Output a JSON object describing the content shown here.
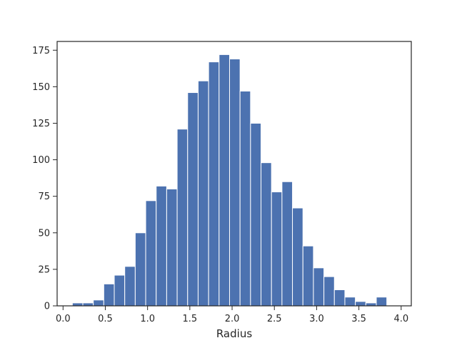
{
  "chart_data": {
    "type": "bar",
    "title": "",
    "xlabel": "Radius",
    "ylabel": "",
    "xlim": [
      -0.07,
      4.12
    ],
    "ylim": [
      0,
      181
    ],
    "grid": false,
    "bar_color": "#4c72b0",
    "bin_width": 0.124,
    "bins": [
      {
        "x0": 0.11,
        "count": 2
      },
      {
        "x0": 0.234,
        "count": 2
      },
      {
        "x0": 0.358,
        "count": 4
      },
      {
        "x0": 0.482,
        "count": 15
      },
      {
        "x0": 0.606,
        "count": 21
      },
      {
        "x0": 0.73,
        "count": 27
      },
      {
        "x0": 0.854,
        "count": 50
      },
      {
        "x0": 0.978,
        "count": 72
      },
      {
        "x0": 1.102,
        "count": 82
      },
      {
        "x0": 1.226,
        "count": 80
      },
      {
        "x0": 1.35,
        "count": 121
      },
      {
        "x0": 1.474,
        "count": 146
      },
      {
        "x0": 1.598,
        "count": 154
      },
      {
        "x0": 1.722,
        "count": 167
      },
      {
        "x0": 1.846,
        "count": 172
      },
      {
        "x0": 1.97,
        "count": 169
      },
      {
        "x0": 2.094,
        "count": 147
      },
      {
        "x0": 2.218,
        "count": 125
      },
      {
        "x0": 2.342,
        "count": 98
      },
      {
        "x0": 2.466,
        "count": 78
      },
      {
        "x0": 2.59,
        "count": 85
      },
      {
        "x0": 2.714,
        "count": 67
      },
      {
        "x0": 2.838,
        "count": 41
      },
      {
        "x0": 2.962,
        "count": 26
      },
      {
        "x0": 3.086,
        "count": 20
      },
      {
        "x0": 3.21,
        "count": 11
      },
      {
        "x0": 3.334,
        "count": 6
      },
      {
        "x0": 3.458,
        "count": 3
      },
      {
        "x0": 3.582,
        "count": 2
      },
      {
        "x0": 3.706,
        "count": 6
      }
    ],
    "x_ticks": [
      0.0,
      0.5,
      1.0,
      1.5,
      2.0,
      2.5,
      3.0,
      3.5,
      4.0
    ],
    "x_tick_labels": [
      "0.0",
      "0.5",
      "1.0",
      "1.5",
      "2.0",
      "2.5",
      "3.0",
      "3.5",
      "4.0"
    ],
    "y_ticks": [
      0,
      25,
      50,
      75,
      100,
      125,
      150,
      175
    ],
    "y_tick_labels": [
      "0",
      "25",
      "50",
      "75",
      "100",
      "125",
      "150",
      "175"
    ]
  }
}
